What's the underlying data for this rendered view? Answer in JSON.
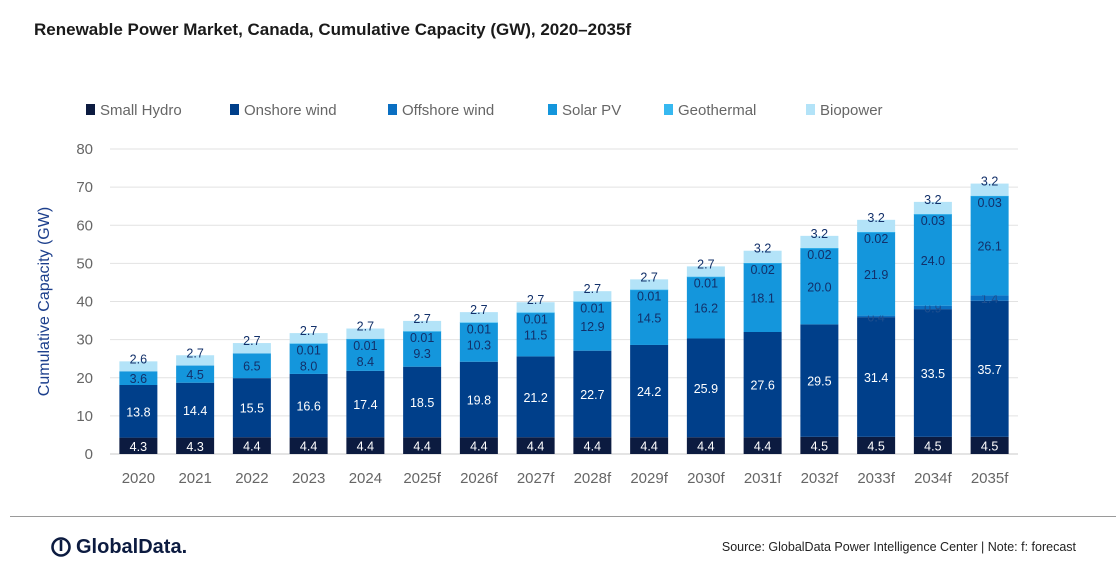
{
  "chart_data": {
    "type": "bar",
    "stacked": true,
    "title": "Renewable Power Market, Canada, Cumulative Capacity (GW), 2020–2035f",
    "xlabel": "",
    "ylabel": "Cumulative Capacity (GW)",
    "ylim": [
      0,
      80
    ],
    "yticks": [
      0,
      10,
      20,
      30,
      40,
      50,
      60,
      70,
      80
    ],
    "grid": true,
    "legend": "top",
    "categories": [
      "2020",
      "2021",
      "2022",
      "2023",
      "2024",
      "2025f",
      "2026f",
      "2027f",
      "2028f",
      "2029f",
      "2030f",
      "2031f",
      "2032f",
      "2033f",
      "2034f",
      "2035f"
    ],
    "series": [
      {
        "name": "Small Hydro",
        "color": "#0c1b40",
        "label_color": "#ffffff",
        "values": [
          4.3,
          4.3,
          4.4,
          4.4,
          4.4,
          4.4,
          4.4,
          4.4,
          4.4,
          4.4,
          4.4,
          4.4,
          4.5,
          4.5,
          4.5,
          4.5
        ]
      },
      {
        "name": "Onshore wind",
        "color": "#003f8a",
        "label_color": "#ffffff",
        "values": [
          13.8,
          14.4,
          15.5,
          16.6,
          17.4,
          18.5,
          19.8,
          21.2,
          22.7,
          24.2,
          25.9,
          27.6,
          29.5,
          31.4,
          33.5,
          35.7
        ]
      },
      {
        "name": "Offshore wind",
        "color": "#0a6fc2",
        "label_color": "#1f4f8f",
        "values": [
          null,
          null,
          null,
          null,
          null,
          null,
          null,
          null,
          null,
          null,
          null,
          null,
          null,
          0.4,
          0.9,
          1.4
        ]
      },
      {
        "name": "Solar PV",
        "color": "#1496dc",
        "label_color": "#12306a",
        "values": [
          3.6,
          4.5,
          6.5,
          8.0,
          8.4,
          9.3,
          10.3,
          11.5,
          12.9,
          14.5,
          16.2,
          18.1,
          20.0,
          21.9,
          24.0,
          26.1
        ]
      },
      {
        "name": "Geothermal",
        "color": "#36b8f0",
        "label_color": "#12306a",
        "values": [
          null,
          null,
          null,
          0.01,
          0.01,
          0.01,
          0.01,
          0.01,
          0.01,
          0.01,
          0.01,
          0.02,
          0.02,
          0.02,
          0.03,
          0.03
        ]
      },
      {
        "name": "Biopower",
        "color": "#b3e3f8",
        "label_color": "#12306a",
        "values": [
          2.6,
          2.7,
          2.7,
          2.7,
          2.7,
          2.7,
          2.7,
          2.7,
          2.7,
          2.7,
          2.7,
          3.2,
          3.2,
          3.2,
          3.2,
          3.2
        ]
      }
    ]
  },
  "footer": {
    "logo_text": "GlobalData.",
    "source": "Source: GlobalData Power Intelligence Center | Note: f: forecast"
  }
}
